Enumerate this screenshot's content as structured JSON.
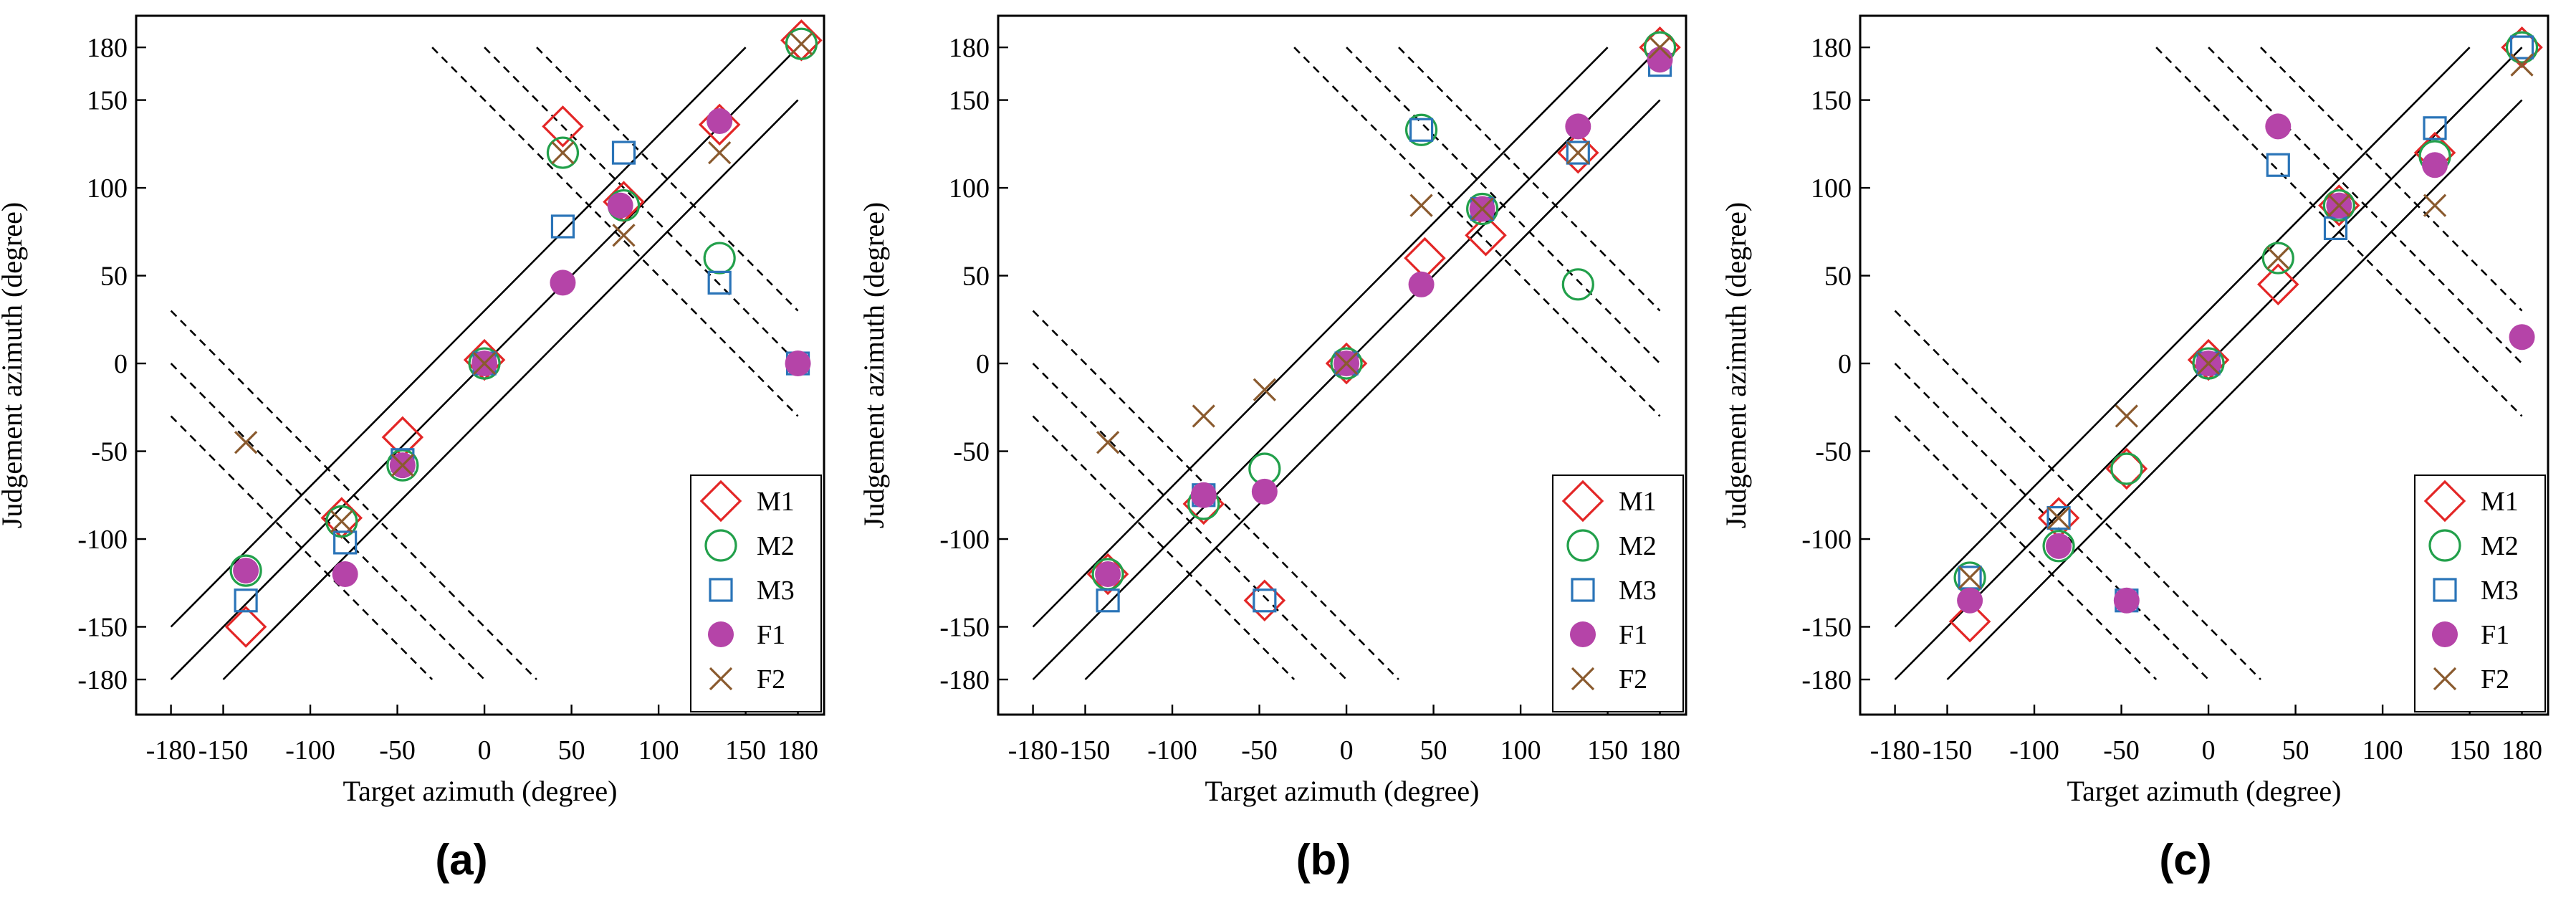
{
  "figure": {
    "panel_labels": [
      "(a)",
      "(b)",
      "(c)"
    ]
  },
  "chart_data": [
    {
      "type": "scatter",
      "panel": "(a)",
      "xlabel": "Target azimuth (degree)",
      "ylabel": "Judgement azimuth (degree)",
      "xlim": [
        -200,
        195
      ],
      "ylim": [
        -200,
        198
      ],
      "x_ticks": [
        -180,
        -150,
        -100,
        -50,
        0,
        50,
        100,
        150,
        180
      ],
      "x_tick_labels": [
        "-180",
        "-150",
        "-100",
        "-50",
        "0",
        "50",
        "100",
        "150",
        "180"
      ],
      "y_ticks": [
        -180,
        -150,
        -100,
        -50,
        0,
        50,
        100,
        150,
        180
      ],
      "y_tick_labels": [
        "-180",
        "-150",
        "-100",
        "-50",
        "0",
        "50",
        "100",
        "150",
        "180"
      ],
      "legend": "bottom-right",
      "reference_lines": [
        {
          "style": "solid",
          "x1": -180,
          "y1": -150,
          "x2": 150,
          "y2": 180
        },
        {
          "style": "solid",
          "x1": -180,
          "y1": -180,
          "x2": 180,
          "y2": 180
        },
        {
          "style": "solid",
          "x1": -150,
          "y1": -180,
          "x2": 180,
          "y2": 150
        },
        {
          "style": "dashed",
          "x1": -180,
          "y1": 30,
          "x2": 30,
          "y2": -180
        },
        {
          "style": "dashed",
          "x1": -180,
          "y1": 0,
          "x2": 0,
          "y2": -180
        },
        {
          "style": "dashed",
          "x1": -180,
          "y1": -30,
          "x2": -30,
          "y2": -180
        },
        {
          "style": "dashed",
          "x1": 0,
          "y1": 180,
          "x2": 180,
          "y2": 0
        },
        {
          "style": "dashed",
          "x1": 30,
          "y1": 180,
          "x2": 180,
          "y2": 30
        },
        {
          "style": "dashed",
          "x1": -30,
          "y1": 180,
          "x2": 180,
          "y2": -30
        }
      ],
      "series": [
        {
          "name": "M1",
          "marker": "diamond",
          "color": "#e32626",
          "points": [
            [
              -137,
              -150
            ],
            [
              -82,
              -88
            ],
            [
              -47,
              -42
            ],
            [
              0,
              2
            ],
            [
              45,
              135
            ],
            [
              80,
              92
            ],
            [
              135,
              136
            ],
            [
              182,
              184
            ]
          ]
        },
        {
          "name": "M2",
          "marker": "circle",
          "color": "#22a04b",
          "points": [
            [
              -137,
              -118
            ],
            [
              -82,
              -90
            ],
            [
              -47,
              -58
            ],
            [
              0,
              0
            ],
            [
              45,
              120
            ],
            [
              80,
              90
            ],
            [
              135,
              60
            ],
            [
              182,
              182
            ]
          ]
        },
        {
          "name": "M3",
          "marker": "square",
          "color": "#2a74b8",
          "points": [
            [
              -137,
              -135
            ],
            [
              -80,
              -102
            ],
            [
              -47,
              -55
            ],
            [
              0,
              0
            ],
            [
              45,
              78
            ],
            [
              80,
              120
            ],
            [
              135,
              46
            ],
            [
              180,
              0
            ]
          ]
        },
        {
          "name": "F1",
          "marker": "filled-circle",
          "color": "#b544a8",
          "points": [
            [
              -137,
              -118
            ],
            [
              -80,
              -120
            ],
            [
              -47,
              -58
            ],
            [
              0,
              0
            ],
            [
              45,
              46
            ],
            [
              78,
              90
            ],
            [
              135,
              138
            ],
            [
              180,
              0
            ]
          ]
        },
        {
          "name": "F2",
          "marker": "x",
          "color": "#8a5a2e",
          "points": [
            [
              -137,
              -45
            ],
            [
              -82,
              -90
            ],
            [
              -47,
              -58
            ],
            [
              0,
              0
            ],
            [
              45,
              120
            ],
            [
              80,
              73
            ],
            [
              135,
              120
            ],
            [
              182,
              182
            ]
          ]
        }
      ]
    },
    {
      "type": "scatter",
      "panel": "(b)",
      "xlabel": "Target azimuth (degree)",
      "ylabel": "Judgement azimuth (degree)",
      "xlim": [
        -200,
        195
      ],
      "ylim": [
        -200,
        198
      ],
      "x_ticks": [
        -180,
        -150,
        -100,
        -50,
        0,
        50,
        100,
        150,
        180
      ],
      "x_tick_labels": [
        "-180",
        "-150",
        "-100",
        "-50",
        "0",
        "50",
        "100",
        "150",
        "180"
      ],
      "y_ticks": [
        -180,
        -150,
        -100,
        -50,
        0,
        50,
        100,
        150,
        180
      ],
      "y_tick_labels": [
        "-180",
        "-150",
        "-100",
        "-50",
        "0",
        "50",
        "100",
        "150",
        "180"
      ],
      "legend": "bottom-right",
      "reference_lines": [
        {
          "style": "solid",
          "x1": -180,
          "y1": -150,
          "x2": 150,
          "y2": 180
        },
        {
          "style": "solid",
          "x1": -180,
          "y1": -180,
          "x2": 180,
          "y2": 180
        },
        {
          "style": "solid",
          "x1": -150,
          "y1": -180,
          "x2": 180,
          "y2": 150
        },
        {
          "style": "dashed",
          "x1": -180,
          "y1": 30,
          "x2": 30,
          "y2": -180
        },
        {
          "style": "dashed",
          "x1": -180,
          "y1": 0,
          "x2": 0,
          "y2": -180
        },
        {
          "style": "dashed",
          "x1": -180,
          "y1": -30,
          "x2": -30,
          "y2": -180
        },
        {
          "style": "dashed",
          "x1": 0,
          "y1": 180,
          "x2": 180,
          "y2": 0
        },
        {
          "style": "dashed",
          "x1": 30,
          "y1": 180,
          "x2": 180,
          "y2": 30
        },
        {
          "style": "dashed",
          "x1": -30,
          "y1": 180,
          "x2": 180,
          "y2": -30
        }
      ],
      "series": [
        {
          "name": "M1",
          "marker": "diamond",
          "color": "#e32626",
          "points": [
            [
              -137,
              -120
            ],
            [
              -82,
              -80
            ],
            [
              -47,
              -135
            ],
            [
              0,
              0
            ],
            [
              45,
              60
            ],
            [
              80,
              73
            ],
            [
              133,
              120
            ],
            [
              180,
              180
            ]
          ]
        },
        {
          "name": "M2",
          "marker": "circle",
          "color": "#22a04b",
          "points": [
            [
              -137,
              -120
            ],
            [
              -82,
              -80
            ],
            [
              -47,
              -60
            ],
            [
              0,
              0
            ],
            [
              43,
              133
            ],
            [
              78,
              88
            ],
            [
              133,
              45
            ],
            [
              180,
              180
            ]
          ]
        },
        {
          "name": "M3",
          "marker": "square",
          "color": "#2a74b8",
          "points": [
            [
              -137,
              -135
            ],
            [
              -82,
              -75
            ],
            [
              -47,
              -135
            ],
            [
              0,
              0
            ],
            [
              43,
              133
            ],
            [
              78,
              88
            ],
            [
              133,
              120
            ],
            [
              180,
              170
            ]
          ]
        },
        {
          "name": "F1",
          "marker": "filled-circle",
          "color": "#b544a8",
          "points": [
            [
              -137,
              -120
            ],
            [
              -82,
              -75
            ],
            [
              -47,
              -73
            ],
            [
              0,
              0
            ],
            [
              43,
              45
            ],
            [
              78,
              88
            ],
            [
              133,
              135
            ],
            [
              180,
              173
            ]
          ]
        },
        {
          "name": "F2",
          "marker": "x",
          "color": "#8a5a2e",
          "points": [
            [
              -137,
              -45
            ],
            [
              -82,
              -30
            ],
            [
              -47,
              -15
            ],
            [
              0,
              0
            ],
            [
              43,
              90
            ],
            [
              78,
              88
            ],
            [
              133,
              120
            ],
            [
              180,
              180
            ]
          ]
        }
      ]
    },
    {
      "type": "scatter",
      "panel": "(c)",
      "xlabel": "Target azimuth (degree)",
      "ylabel": "Judgement azimuth (degree)",
      "xlim": [
        -200,
        195
      ],
      "ylim": [
        -200,
        198
      ],
      "x_ticks": [
        -180,
        -150,
        -100,
        -50,
        0,
        50,
        100,
        150,
        180
      ],
      "x_tick_labels": [
        "-180",
        "-150",
        "-100",
        "-50",
        "0",
        "50",
        "100",
        "150",
        "180"
      ],
      "y_ticks": [
        -180,
        -150,
        -100,
        -50,
        0,
        50,
        100,
        150,
        180
      ],
      "y_tick_labels": [
        "-180",
        "-150",
        "-100",
        "-50",
        "0",
        "50",
        "100",
        "150",
        "180"
      ],
      "legend": "bottom-right",
      "reference_lines": [
        {
          "style": "solid",
          "x1": -180,
          "y1": -150,
          "x2": 150,
          "y2": 180
        },
        {
          "style": "solid",
          "x1": -180,
          "y1": -180,
          "x2": 180,
          "y2": 180
        },
        {
          "style": "solid",
          "x1": -150,
          "y1": -180,
          "x2": 180,
          "y2": 150
        },
        {
          "style": "dashed",
          "x1": -180,
          "y1": 30,
          "x2": 30,
          "y2": -180
        },
        {
          "style": "dashed",
          "x1": -180,
          "y1": 0,
          "x2": 0,
          "y2": -180
        },
        {
          "style": "dashed",
          "x1": -180,
          "y1": -30,
          "x2": -30,
          "y2": -180
        },
        {
          "style": "dashed",
          "x1": 0,
          "y1": 180,
          "x2": 180,
          "y2": 0
        },
        {
          "style": "dashed",
          "x1": 30,
          "y1": 180,
          "x2": 180,
          "y2": 30
        },
        {
          "style": "dashed",
          "x1": -30,
          "y1": 180,
          "x2": 180,
          "y2": -30
        }
      ],
      "series": [
        {
          "name": "M1",
          "marker": "diamond",
          "color": "#e32626",
          "points": [
            [
              -137,
              -147
            ],
            [
              -86,
              -88
            ],
            [
              -47,
              -60
            ],
            [
              0,
              2
            ],
            [
              40,
              45
            ],
            [
              75,
              90
            ],
            [
              130,
              120
            ],
            [
              180,
              180
            ]
          ]
        },
        {
          "name": "M2",
          "marker": "circle",
          "color": "#22a04b",
          "points": [
            [
              -137,
              -122
            ],
            [
              -86,
              -104
            ],
            [
              -47,
              -60
            ],
            [
              0,
              0
            ],
            [
              40,
              60
            ],
            [
              75,
              90
            ],
            [
              130,
              118
            ],
            [
              180,
              180
            ]
          ]
        },
        {
          "name": "M3",
          "marker": "square",
          "color": "#2a74b8",
          "points": [
            [
              -137,
              -122
            ],
            [
              -86,
              -88
            ],
            [
              -47,
              -135
            ],
            [
              0,
              0
            ],
            [
              40,
              113
            ],
            [
              73,
              77
            ],
            [
              130,
              134
            ],
            [
              180,
              180
            ]
          ]
        },
        {
          "name": "F1",
          "marker": "filled-circle",
          "color": "#b544a8",
          "points": [
            [
              -137,
              -135
            ],
            [
              -86,
              -104
            ],
            [
              -47,
              -135
            ],
            [
              0,
              0
            ],
            [
              40,
              135
            ],
            [
              75,
              90
            ],
            [
              130,
              113
            ],
            [
              180,
              15
            ]
          ]
        },
        {
          "name": "F2",
          "marker": "x",
          "color": "#8a5a2e",
          "points": [
            [
              -137,
              -122
            ],
            [
              -86,
              -88
            ],
            [
              -47,
              -30
            ],
            [
              0,
              0
            ],
            [
              40,
              60
            ],
            [
              75,
              90
            ],
            [
              130,
              90
            ],
            [
              180,
              170
            ]
          ]
        }
      ]
    }
  ]
}
